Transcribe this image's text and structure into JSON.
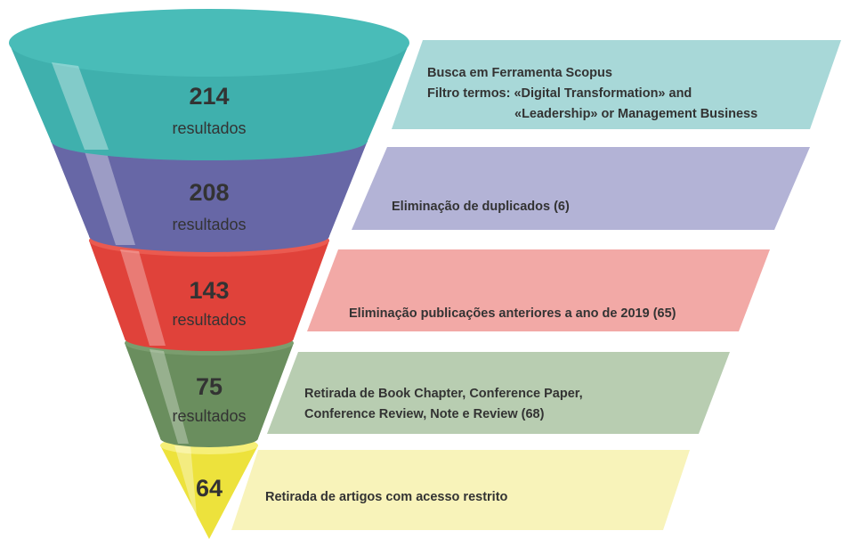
{
  "stages": [
    {
      "count": "214",
      "unit": "resultados",
      "lines": [
        "Busca em Ferramenta Scopus",
        "Filtro termos: «Digital Transformation» and",
        "«Leadership» or Management Business"
      ]
    },
    {
      "count": "208",
      "unit": "resultados",
      "lines": [
        "Eliminação de duplicados (6)"
      ]
    },
    {
      "count": "143",
      "unit": "resultados",
      "lines": [
        "Eliminação publicações anteriores a ano de 2019 (65)"
      ]
    },
    {
      "count": "75",
      "unit": "resultados",
      "lines": [
        "Retirada de Book Chapter, Conference Paper,",
        "Conference Review, Note e Review (68)"
      ]
    },
    {
      "count": "64",
      "lines": [
        "Retirada de artigos com acesso restrito"
      ]
    }
  ]
}
